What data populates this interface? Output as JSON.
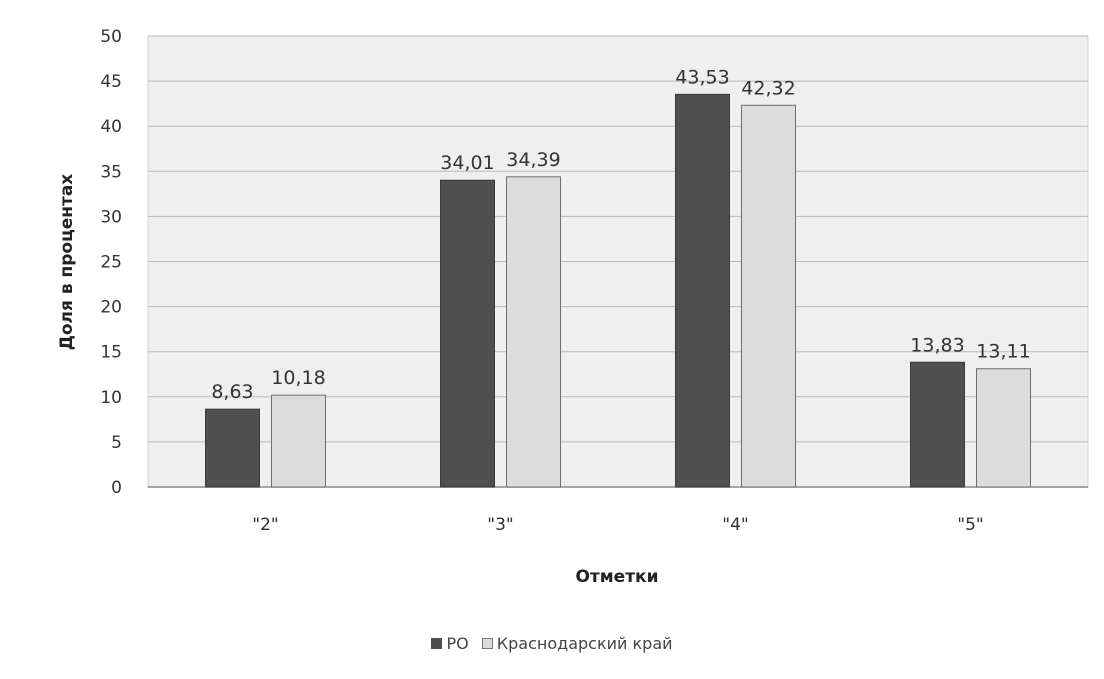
{
  "chart_data": {
    "type": "bar",
    "categories": [
      "\"2\"",
      "\"3\"",
      "\"4\"",
      "\"5\""
    ],
    "series": [
      {
        "name": "РО",
        "values": [
          8.63,
          34.01,
          43.53,
          13.83
        ],
        "labels": [
          "8,63",
          "34,01",
          "43,53",
          "13,83"
        ],
        "color": "#4f4f4f"
      },
      {
        "name": "Краснодарский край",
        "values": [
          10.18,
          34.39,
          42.32,
          13.11
        ],
        "labels": [
          "10,18",
          "34,39",
          "42,32",
          "13,11"
        ],
        "color": "#dcdcdc"
      }
    ],
    "title": "",
    "xlabel": "Отметки",
    "ylabel": "Доля в процентах",
    "ylim": [
      0,
      50
    ],
    "yticks": [
      0,
      5,
      10,
      15,
      20,
      25,
      30,
      35,
      40,
      45,
      50
    ],
    "grid": true,
    "legend_position": "bottom"
  }
}
